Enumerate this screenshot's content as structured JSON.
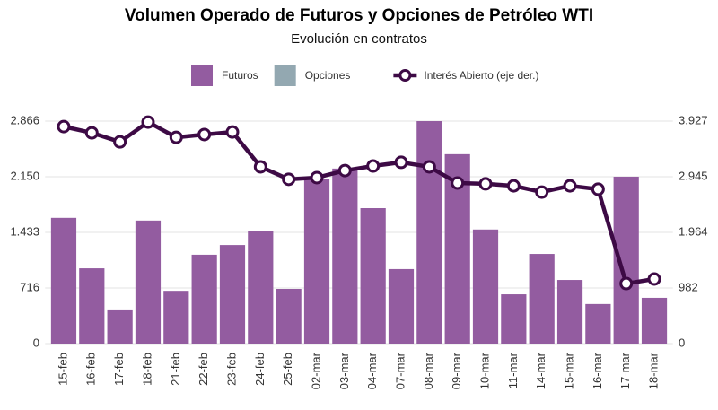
{
  "chart_data": {
    "type": "bar_line",
    "title": "Volumen Operado de Futuros y Opciones de Petróleo WTI",
    "subtitle": "Evolución en contratos",
    "categories": [
      "15-feb",
      "16-feb",
      "17-feb",
      "18-feb",
      "21-feb",
      "22-feb",
      "23-feb",
      "24-feb",
      "25-feb",
      "02-mar",
      "03-mar",
      "04-mar",
      "07-mar",
      "08-mar",
      "09-mar",
      "10-mar",
      "11-mar",
      "14-mar",
      "15-mar",
      "16-mar",
      "17-mar",
      "18-mar"
    ],
    "series": [
      {
        "name": "Futuros",
        "color": "#935ca0",
        "kind": "bar",
        "values": [
          1620,
          970,
          440,
          1585,
          680,
          1145,
          1270,
          1455,
          705,
          2115,
          2255,
          1745,
          960,
          2866,
          2440,
          1470,
          635,
          1155,
          820,
          510,
          2150,
          590
        ]
      },
      {
        "name": "Opciones",
        "color": "#93a8b1",
        "kind": "bar",
        "values": [
          0,
          0,
          0,
          0,
          0,
          0,
          0,
          0,
          0,
          0,
          0,
          0,
          0,
          0,
          0,
          0,
          0,
          0,
          0,
          0,
          0,
          0
        ]
      },
      {
        "name": "Interés Abierto (eje der.)",
        "color": "#3d0a45",
        "kind": "line",
        "axis": "y2",
        "values": [
          3830,
          3720,
          3560,
          3910,
          3640,
          3690,
          3735,
          3120,
          2900,
          2930,
          3055,
          3135,
          3200,
          3120,
          2835,
          2820,
          2785,
          2675,
          2785,
          2725,
          1060,
          1140
        ]
      }
    ],
    "ylim": [
      0,
      2866
    ],
    "yticks": [
      0,
      716,
      {
        "value": 1433,
        "label": "1.433"
      },
      {
        "value": 2150,
        "label": "2.150"
      },
      {
        "value": 2866,
        "label": "2.866"
      }
    ],
    "y2lim": [
      0,
      3927
    ],
    "y2ticks": [
      0,
      982,
      {
        "value": 1964,
        "label": "1.964"
      },
      {
        "value": 2945,
        "label": "2.945"
      },
      {
        "value": 3927,
        "label": "3.927"
      }
    ],
    "grid": true,
    "legend": "top"
  }
}
